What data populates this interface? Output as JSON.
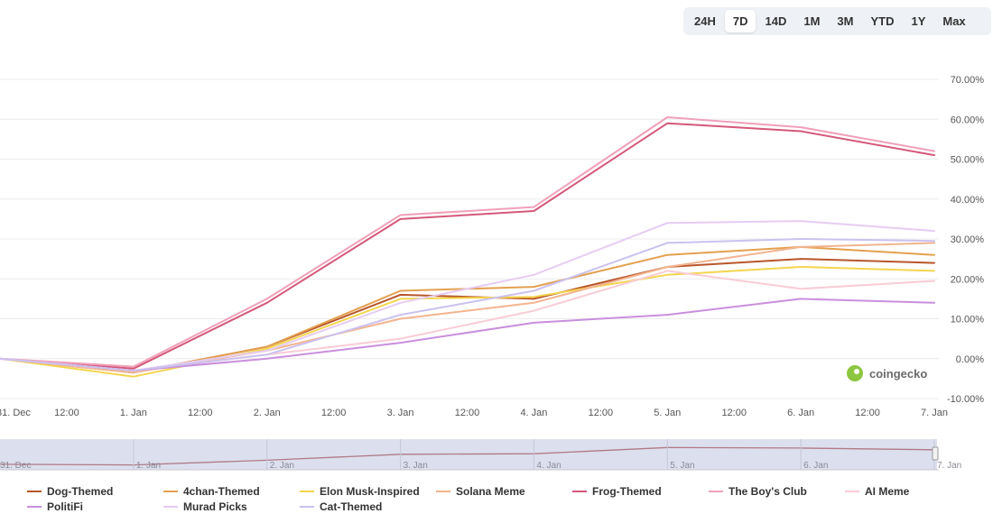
{
  "range_selector": {
    "options": [
      "24H",
      "7D",
      "14D",
      "1M",
      "3M",
      "YTD",
      "1Y",
      "Max"
    ],
    "active": "7D"
  },
  "watermark": {
    "text": "coingecko",
    "icon": "coingecko-logo-icon"
  },
  "chart_data": {
    "type": "line",
    "title": "",
    "xlabel": "",
    "ylabel": "",
    "x_unit": "days since 31. Dec",
    "x_ticks": [
      {
        "x": 0,
        "label": "31. Dec"
      },
      {
        "x": 0.5,
        "label": "12:00"
      },
      {
        "x": 1,
        "label": "1. Jan"
      },
      {
        "x": 1.5,
        "label": "12:00"
      },
      {
        "x": 2,
        "label": "2. Jan"
      },
      {
        "x": 2.5,
        "label": "12:00"
      },
      {
        "x": 3,
        "label": "3. Jan"
      },
      {
        "x": 3.5,
        "label": "12:00"
      },
      {
        "x": 4,
        "label": "4. Jan"
      },
      {
        "x": 4.5,
        "label": "12:00"
      },
      {
        "x": 5,
        "label": "5. Jan"
      },
      {
        "x": 5.5,
        "label": "12:00"
      },
      {
        "x": 6,
        "label": "6. Jan"
      },
      {
        "x": 6.5,
        "label": "12:00"
      },
      {
        "x": 7,
        "label": "7. Jan"
      }
    ],
    "y_ticks": [
      "-10.00%",
      "0.00%",
      "10.00%",
      "20.00%",
      "30.00%",
      "40.00%",
      "50.00%",
      "60.00%",
      "70.00%"
    ],
    "ylim": [
      -10,
      70
    ],
    "xlim": [
      0,
      7
    ],
    "grid": true,
    "legend_position": "bottom",
    "x": [
      0,
      1,
      2,
      3,
      4,
      5,
      6,
      7
    ],
    "series": [
      {
        "name": "Dog-Themed",
        "color": "#b8562a",
        "values": [
          0,
          -3.5,
          3,
          16,
          15,
          23,
          25,
          24
        ]
      },
      {
        "name": "4chan-Themed",
        "color": "#e3a04f",
        "values": [
          0,
          -3.5,
          3,
          17,
          18,
          26,
          28,
          26
        ]
      },
      {
        "name": "Elon Musk-Inspired",
        "color": "#f3d54e",
        "values": [
          0,
          -4.5,
          2.5,
          15,
          15.5,
          21,
          23,
          22
        ]
      },
      {
        "name": "Solana Meme",
        "color": "#f2b48f",
        "values": [
          0,
          -3.5,
          2,
          10,
          14,
          23,
          28,
          29
        ]
      },
      {
        "name": "Frog-Themed",
        "color": "#d4587a",
        "values": [
          0,
          -2.5,
          14,
          35,
          37,
          59,
          57,
          51
        ]
      },
      {
        "name": "The Boy's Club",
        "color": "#f0a0b8",
        "values": [
          0,
          -2,
          15,
          36,
          38,
          60.5,
          58,
          52
        ]
      },
      {
        "name": "AI Meme",
        "color": "#f8ccd6",
        "values": [
          0,
          -3,
          1,
          5,
          12,
          22,
          17.5,
          19.5
        ]
      },
      {
        "name": "PolitiFi",
        "color": "#c98fdc",
        "values": [
          0,
          -3,
          0,
          4,
          9,
          11,
          15,
          14
        ]
      },
      {
        "name": "Murad Picks",
        "color": "#e6ccf2",
        "values": [
          0,
          -3,
          2,
          14,
          21,
          34,
          34.5,
          32
        ]
      },
      {
        "name": "Cat-Themed",
        "color": "#cbc1ef",
        "values": [
          0,
          -3,
          1,
          11,
          17,
          29,
          30,
          29.5
        ]
      }
    ],
    "navigator": {
      "x_labels": [
        "31. Dec",
        "1. Jan",
        "2. Jan",
        "3. Jan",
        "4. Jan",
        "5. Jan",
        "6. Jan",
        "7. Jan"
      ]
    }
  }
}
